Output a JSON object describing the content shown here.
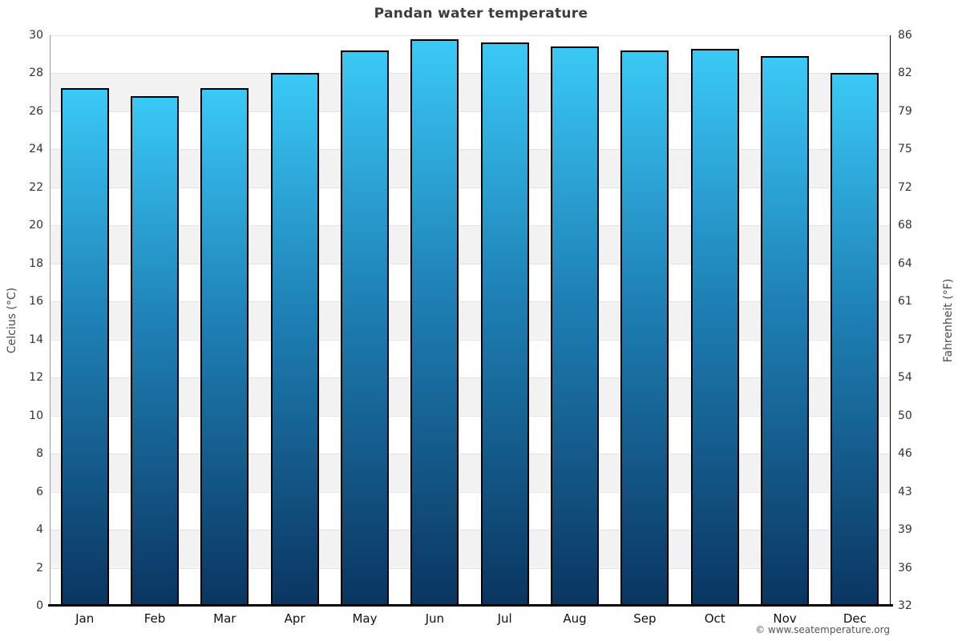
{
  "page": {
    "title": "Pandan water temperature",
    "attribution": "© www.seatemperature.org"
  },
  "chart_data": {
    "type": "bar",
    "title": "Pandan water temperature",
    "categories": [
      "Jan",
      "Feb",
      "Mar",
      "Apr",
      "May",
      "Jun",
      "Jul",
      "Aug",
      "Sep",
      "Oct",
      "Nov",
      "Dec"
    ],
    "values": [
      27.2,
      26.8,
      27.2,
      28.0,
      29.2,
      29.8,
      29.6,
      29.4,
      29.2,
      29.3,
      28.9,
      28.0
    ],
    "value_unit": "°C",
    "ylabel_left": "Celcius (°C)",
    "ylabel_right": "Fahrenheit (°F)",
    "ylim": [
      0,
      30
    ],
    "ytick_step_celsius": 2,
    "yticks_celsius": [
      30,
      28,
      26,
      24,
      22,
      20,
      18,
      16,
      14,
      12,
      10,
      8,
      6,
      4,
      2,
      0
    ],
    "yticks_fahrenheit": [
      86,
      82,
      79,
      75,
      72,
      68,
      64,
      61,
      57,
      54,
      50,
      46,
      43,
      39,
      36,
      32
    ],
    "grid": true,
    "alternating_bands": true,
    "legend": false,
    "colors": {
      "bar_top": "#3ac9f6",
      "bar_mid": "#1e80b5",
      "bar_bottom": "#0a3560",
      "bar_border": "#000000",
      "band": "#f2f2f2",
      "gridline": "#e2e2e2",
      "axis_left_line": "#9b9b9b",
      "axis_right_line": "#000000",
      "axis_bottom_line": "#000000"
    }
  }
}
